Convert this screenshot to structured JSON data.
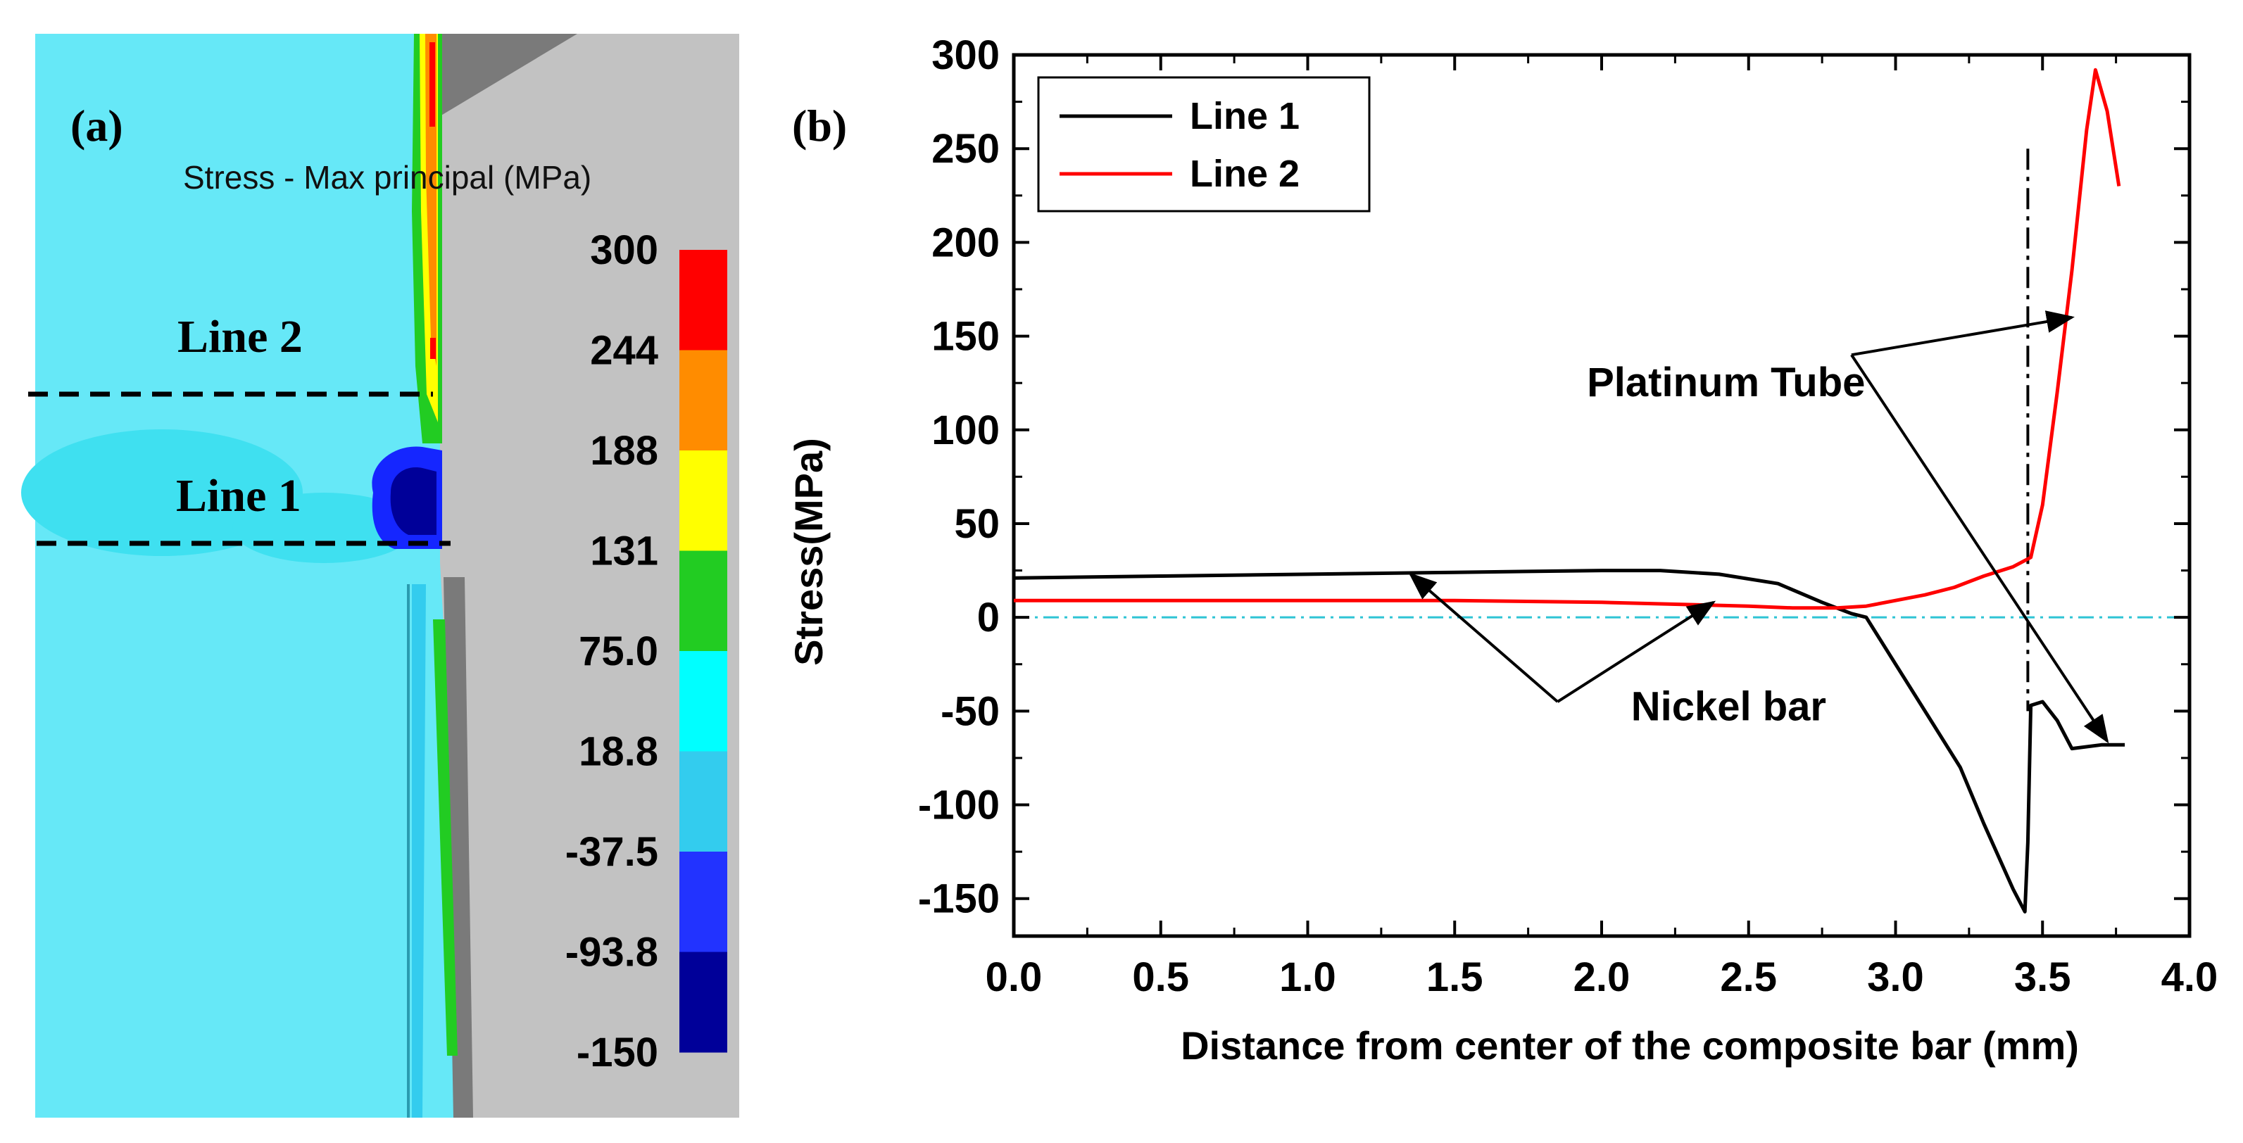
{
  "figure": {
    "panel_a_label": "(a)",
    "panel_b_label": "(b)"
  },
  "fem": {
    "colorbar_title": "Stress - Max principal (MPa)",
    "line1_label": "Line 1",
    "line2_label": "Line 2",
    "colorbar_ticks": [
      "300",
      "244",
      "188",
      "131",
      "75.0",
      "18.8",
      "-37.5",
      "-93.8",
      "-150"
    ],
    "colorbar_colors": [
      "#ff0000",
      "#ff8c00",
      "#ffff00",
      "#22cc22",
      "#00ffff",
      "#33ccee",
      "#2233ff",
      "#000099"
    ],
    "colors": {
      "model_bg": "#66e8f7",
      "tube_gray": "#c2c2c2",
      "dark_gray": "#7a7a7a",
      "cyan_light": "#3fe0f0",
      "blue": "#1526ff",
      "navy": "#000099"
    }
  },
  "chart_data": {
    "type": "line",
    "title": "",
    "xlabel": "Distance from center of the composite bar (mm)",
    "ylabel": "Stress(MPa)",
    "xlim": [
      0.0,
      4.0
    ],
    "ylim": [
      -170,
      300
    ],
    "x_ticks": [
      0.0,
      0.5,
      1.0,
      1.5,
      2.0,
      2.5,
      3.0,
      3.5,
      4.0
    ],
    "x_tick_labels": [
      "0.0",
      "0.5",
      "1.0",
      "1.5",
      "2.0",
      "2.5",
      "3.0",
      "3.5",
      "4.0"
    ],
    "y_ticks": [
      300,
      250,
      200,
      150,
      100,
      50,
      0,
      -50,
      -100,
      -150
    ],
    "y_tick_labels": [
      "300",
      "250",
      "200",
      "150",
      "100",
      "50",
      "0",
      "-50",
      "-100",
      "-150"
    ],
    "legend_position": "top-left",
    "series": [
      {
        "name": "Line 1",
        "color": "#000000",
        "points": [
          [
            0.0,
            21
          ],
          [
            0.5,
            22
          ],
          [
            1.0,
            23
          ],
          [
            1.5,
            24
          ],
          [
            2.0,
            25
          ],
          [
            2.2,
            25
          ],
          [
            2.4,
            23
          ],
          [
            2.6,
            18
          ],
          [
            2.75,
            8
          ],
          [
            2.85,
            2
          ],
          [
            2.9,
            0
          ],
          [
            3.0,
            -25
          ],
          [
            3.1,
            -50
          ],
          [
            3.22,
            -80
          ],
          [
            3.3,
            -110
          ],
          [
            3.4,
            -145
          ],
          [
            3.44,
            -157
          ],
          [
            3.45,
            -120
          ],
          [
            3.46,
            -47
          ],
          [
            3.5,
            -45
          ],
          [
            3.55,
            -55
          ],
          [
            3.6,
            -70
          ],
          [
            3.7,
            -68
          ],
          [
            3.78,
            -68
          ]
        ]
      },
      {
        "name": "Line 2",
        "color": "#ff0000",
        "points": [
          [
            0.0,
            9
          ],
          [
            0.5,
            9
          ],
          [
            1.0,
            9
          ],
          [
            1.5,
            9
          ],
          [
            2.0,
            8
          ],
          [
            2.5,
            6
          ],
          [
            2.65,
            5
          ],
          [
            2.8,
            5
          ],
          [
            2.9,
            6
          ],
          [
            3.0,
            9
          ],
          [
            3.1,
            12
          ],
          [
            3.2,
            16
          ],
          [
            3.3,
            22
          ],
          [
            3.4,
            27
          ],
          [
            3.46,
            32
          ],
          [
            3.5,
            60
          ],
          [
            3.55,
            120
          ],
          [
            3.6,
            185
          ],
          [
            3.65,
            260
          ],
          [
            3.68,
            292
          ],
          [
            3.72,
            270
          ],
          [
            3.76,
            230
          ]
        ]
      }
    ],
    "reference_lines": [
      {
        "kind": "horizontal",
        "value": 0,
        "color": "#2ec4d4",
        "style": "dash-dot"
      },
      {
        "kind": "vertical",
        "value": 3.45,
        "color": "#000000",
        "style": "dash-dot"
      }
    ],
    "annotations": [
      {
        "text": "Platinum Tube",
        "anchor": [
          1.95,
          118
        ],
        "targets": [
          [
            3.6,
            160
          ],
          [
            3.72,
            -66
          ]
        ]
      },
      {
        "text": "Nickel bar",
        "anchor": [
          2.1,
          -55
        ],
        "targets": [
          [
            1.35,
            23
          ],
          [
            2.38,
            8
          ]
        ]
      }
    ]
  }
}
